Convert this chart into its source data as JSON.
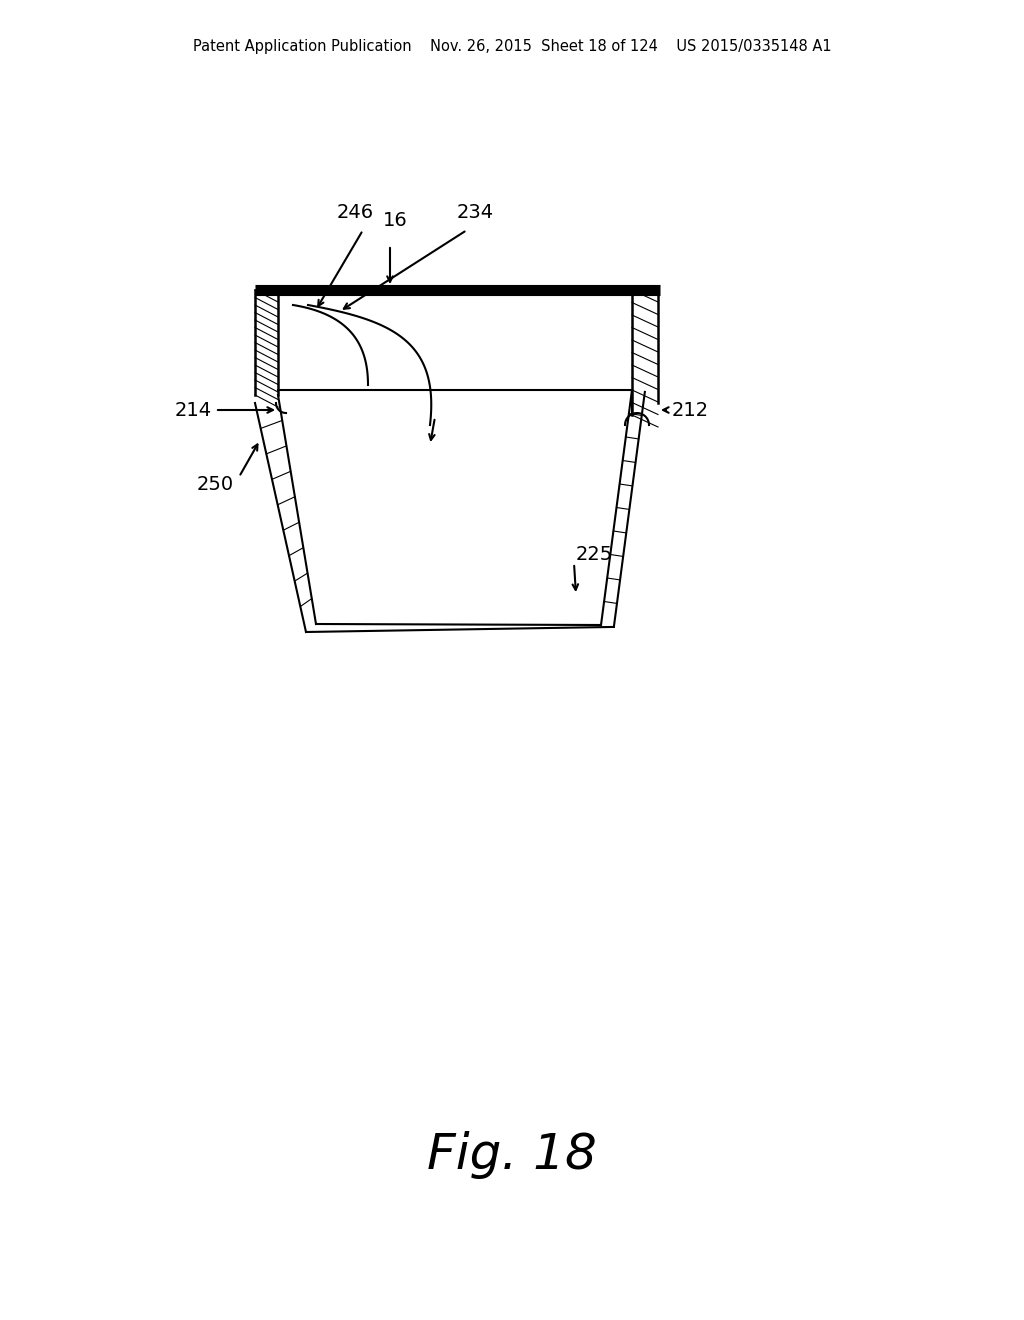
{
  "bg_color": "#ffffff",
  "line_color": "#000000",
  "header_text": "Patent Application Publication    Nov. 26, 2015  Sheet 18 of 124    US 2015/0335148 A1",
  "fig_label": "Fig. 18",
  "fig_label_fontsize": 36,
  "header_fontsize": 10.5
}
